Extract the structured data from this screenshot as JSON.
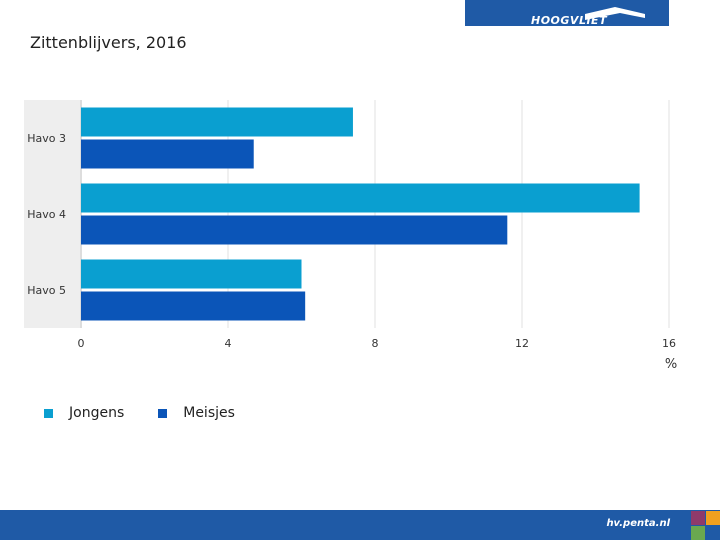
{
  "logo": {
    "text": "HOOGVLIET"
  },
  "footer": {
    "url": "hv.penta.nl"
  },
  "colors": {
    "jongens": "#0a9fd0",
    "meisjes": "#0b55b8",
    "brand": "#1f5aa6"
  },
  "chart_data": {
    "type": "bar",
    "orientation": "horizontal",
    "title": "Zittenblijvers, 2016",
    "categories": [
      "Havo 3",
      "Havo 4",
      "Havo 5"
    ],
    "series": [
      {
        "name": "Jongens",
        "values": [
          7.4,
          15.2,
          6.0
        ]
      },
      {
        "name": "Meisjes",
        "values": [
          4.7,
          11.6,
          6.1
        ]
      }
    ],
    "xlabel": "%",
    "xlim": [
      0,
      16
    ],
    "xticks": [
      0,
      4,
      8,
      12,
      16
    ],
    "grid": true,
    "legend_position": "bottom-left"
  }
}
